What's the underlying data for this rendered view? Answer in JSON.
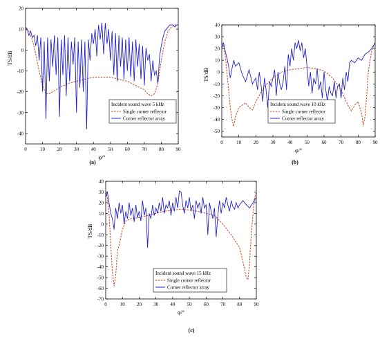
{
  "colors": {
    "single": "#c8461e",
    "array": "#2222cc",
    "axis": "#000000"
  },
  "chart_data": [
    {
      "type": "line",
      "panel_label": "(a)",
      "xlabel": "φ/°",
      "ylabel": "TS/dB",
      "xlim": [
        0,
        90
      ],
      "ylim": [
        -45,
        20
      ],
      "xticks": [
        0,
        10,
        20,
        30,
        40,
        50,
        60,
        70,
        80,
        90
      ],
      "yticks": [
        20,
        10,
        0,
        -10,
        -20,
        -30,
        -40
      ],
      "legend": {
        "title": "Incident sound wave 5 kHz",
        "position": "bottom-right",
        "entries": [
          "Single corner reflector",
          "Corner reflector array"
        ]
      },
      "series": [
        {
          "name": "Single corner reflector",
          "style": "dashed",
          "x": [
            0,
            2,
            4,
            6,
            8,
            10,
            12,
            14,
            16,
            18,
            20,
            25,
            30,
            35,
            40,
            45,
            50,
            55,
            60,
            65,
            70,
            72,
            74,
            76,
            78,
            80,
            82,
            84,
            86,
            88,
            90
          ],
          "y": [
            10,
            9,
            5,
            -2,
            -10,
            -17,
            -21,
            -21,
            -20,
            -19,
            -18,
            -16,
            -15,
            -14,
            -13,
            -13,
            -13,
            -14,
            -15,
            -17,
            -19,
            -21,
            -22,
            -21,
            -16,
            -5,
            4,
            9,
            11,
            12,
            12
          ]
        },
        {
          "name": "Corner reflector array",
          "style": "solid",
          "x": [
            0,
            1,
            2,
            3,
            4,
            5,
            6,
            7,
            8,
            9,
            10,
            11,
            12,
            13,
            14,
            15,
            16,
            17,
            18,
            19,
            20,
            21,
            22,
            23,
            24,
            25,
            26,
            27,
            28,
            29,
            30,
            31,
            32,
            33,
            34,
            35,
            36,
            37,
            38,
            39,
            40,
            41,
            42,
            43,
            44,
            45,
            46,
            47,
            48,
            49,
            50,
            51,
            52,
            53,
            54,
            55,
            56,
            57,
            58,
            59,
            60,
            61,
            62,
            63,
            64,
            65,
            66,
            67,
            68,
            69,
            70,
            71,
            72,
            73,
            74,
            75,
            76,
            77,
            78,
            79,
            80,
            81,
            82,
            83,
            84,
            85,
            86,
            87,
            88,
            89,
            90
          ],
          "y": [
            11,
            10,
            7,
            9,
            6,
            7,
            2,
            7,
            -5,
            6,
            -20,
            4,
            -33,
            6,
            -15,
            5,
            -8,
            7,
            -12,
            6,
            -32,
            5,
            -12,
            7,
            -22,
            6,
            -15,
            4,
            -7,
            6,
            -30,
            4,
            -18,
            5,
            -20,
            4,
            -38,
            5,
            -5,
            8,
            3,
            10,
            -3,
            12,
            5,
            13,
            -2,
            13,
            3,
            10,
            -5,
            9,
            -12,
            8,
            -15,
            7,
            -8,
            6,
            -14,
            5,
            -10,
            6,
            -13,
            4,
            -15,
            5,
            -8,
            3,
            -14,
            2,
            -17,
            1,
            -5,
            -2,
            -15,
            -5,
            -12,
            -10,
            -16,
            -3,
            2,
            6,
            9,
            10,
            11,
            12,
            12,
            12,
            11,
            12,
            12
          ]
        }
      ]
    },
    {
      "type": "line",
      "panel_label": "(b)",
      "xlabel": "φ/°",
      "ylabel": "TS/dB",
      "xlim": [
        0,
        90
      ],
      "ylim": [
        -55,
        40
      ],
      "xticks": [
        0,
        10,
        20,
        30,
        40,
        50,
        60,
        70,
        80,
        90
      ],
      "yticks": [
        40,
        30,
        20,
        10,
        0,
        -10,
        -20,
        -30,
        -40,
        -50
      ],
      "legend": {
        "title": "Incident sound wave 10 kHz",
        "position": "bottom-right",
        "entries": [
          "Single corner reflector",
          "Corner reflector array"
        ]
      },
      "series": [
        {
          "name": "Single corner reflector",
          "style": "dashed",
          "x": [
            0,
            1,
            2,
            3,
            4,
            5,
            6,
            7,
            8,
            10,
            12,
            14,
            16,
            18,
            20,
            25,
            30,
            35,
            40,
            45,
            50,
            55,
            60,
            65,
            70,
            74,
            76,
            78,
            80,
            82,
            83,
            84,
            85,
            86,
            87,
            88,
            89,
            90
          ],
          "y": [
            25,
            22,
            15,
            0,
            -15,
            -30,
            -40,
            -46,
            -38,
            -30,
            -28,
            -26,
            -30,
            -32,
            -25,
            -12,
            -5,
            0,
            2,
            3,
            4,
            3,
            1,
            -5,
            -15,
            -28,
            -33,
            -28,
            -25,
            -35,
            -45,
            -38,
            -20,
            0,
            10,
            18,
            22,
            25
          ]
        },
        {
          "name": "Corner reflector array",
          "style": "solid",
          "x": [
            0,
            1,
            2,
            3,
            4,
            5,
            6,
            7,
            8,
            10,
            12,
            14,
            16,
            18,
            20,
            21,
            22,
            23,
            24,
            25,
            26,
            27,
            28,
            29,
            30,
            31,
            32,
            33,
            34,
            35,
            36,
            37,
            38,
            39,
            40,
            41,
            42,
            43,
            44,
            45,
            46,
            47,
            48,
            49,
            50,
            51,
            52,
            53,
            54,
            55,
            56,
            57,
            58,
            59,
            60,
            61,
            62,
            63,
            64,
            65,
            66,
            67,
            68,
            69,
            70,
            71,
            72,
            73,
            74,
            75,
            76,
            78,
            80,
            82,
            84,
            86,
            88,
            90
          ],
          "y": [
            20,
            25,
            18,
            12,
            5,
            -5,
            3,
            10,
            5,
            8,
            -2,
            -8,
            2,
            -10,
            -5,
            -15,
            0,
            -10,
            -25,
            -5,
            -15,
            -30,
            -8,
            -12,
            -5,
            2,
            -20,
            0,
            -10,
            -15,
            -8,
            5,
            -15,
            15,
            5,
            20,
            10,
            25,
            20,
            27,
            18,
            25,
            12,
            20,
            5,
            -12,
            0,
            -18,
            -5,
            -10,
            3,
            -15,
            -8,
            -22,
            0,
            -15,
            -25,
            -12,
            -18,
            -20,
            -8,
            -22,
            -12,
            -10,
            -22,
            -5,
            -15,
            0,
            -8,
            8,
            10,
            8,
            12,
            10,
            15,
            17,
            20,
            25
          ]
        }
      ]
    },
    {
      "type": "line",
      "panel_label": "(c)",
      "xlabel": "φ/°",
      "ylabel": "TS/dB",
      "xlim": [
        0,
        90
      ],
      "ylim": [
        -70,
        40
      ],
      "xticks": [
        0,
        10,
        20,
        30,
        40,
        50,
        60,
        70,
        80,
        90
      ],
      "yticks": [
        40,
        30,
        20,
        10,
        0,
        -10,
        -20,
        -30,
        -40,
        -50,
        -60,
        -70
      ],
      "legend": {
        "title": "Incident sound wave 15 kHz",
        "position": "bottom-right",
        "entries": [
          "Single corner reflector",
          "Corner reflector array"
        ]
      },
      "series": [
        {
          "name": "Single corner reflector",
          "style": "dashed",
          "x": [
            0,
            1,
            2,
            3,
            4,
            5,
            6,
            7,
            8,
            10,
            12,
            15,
            20,
            25,
            30,
            35,
            40,
            45,
            50,
            55,
            60,
            65,
            70,
            75,
            80,
            82,
            84,
            85,
            86,
            87,
            88,
            89,
            90
          ],
          "y": [
            30,
            25,
            10,
            -20,
            -45,
            -58,
            -48,
            -25,
            -20,
            -5,
            3,
            5,
            6,
            8,
            10,
            12,
            13,
            14,
            13,
            12,
            10,
            8,
            0,
            -10,
            -22,
            -35,
            -50,
            -52,
            -35,
            -10,
            10,
            25,
            30
          ]
        },
        {
          "name": "Corner reflector array",
          "style": "solid",
          "x": [
            0,
            1,
            2,
            3,
            4,
            5,
            6,
            7,
            8,
            9,
            10,
            11,
            12,
            13,
            14,
            15,
            16,
            17,
            18,
            19,
            20,
            21,
            22,
            23,
            24,
            25,
            26,
            27,
            28,
            29,
            30,
            31,
            32,
            33,
            34,
            35,
            36,
            37,
            38,
            39,
            40,
            41,
            42,
            43,
            44,
            45,
            46,
            47,
            48,
            49,
            50,
            51,
            52,
            53,
            54,
            55,
            56,
            57,
            58,
            59,
            60,
            61,
            62,
            63,
            64,
            65,
            66,
            67,
            68,
            69,
            70,
            71,
            72,
            73,
            74,
            75,
            76,
            77,
            78,
            79,
            80,
            82,
            84,
            86,
            88,
            90
          ],
          "y": [
            25,
            30,
            20,
            10,
            5,
            -5,
            15,
            5,
            20,
            10,
            18,
            0,
            12,
            5,
            20,
            8,
            15,
            2,
            18,
            6,
            12,
            3,
            22,
            8,
            15,
            -22,
            10,
            5,
            18,
            8,
            15,
            10,
            20,
            12,
            25,
            10,
            18,
            15,
            22,
            8,
            20,
            12,
            25,
            15,
            31,
            30,
            18,
            10,
            22,
            15,
            25,
            12,
            18,
            5,
            22,
            15,
            20,
            10,
            25,
            15,
            18,
            -10,
            20,
            12,
            5,
            15,
            -12,
            8,
            22,
            10,
            20,
            15,
            25,
            18,
            12,
            22,
            16,
            14,
            20,
            15,
            18,
            22,
            18,
            15,
            20,
            25
          ]
        }
      ]
    }
  ]
}
